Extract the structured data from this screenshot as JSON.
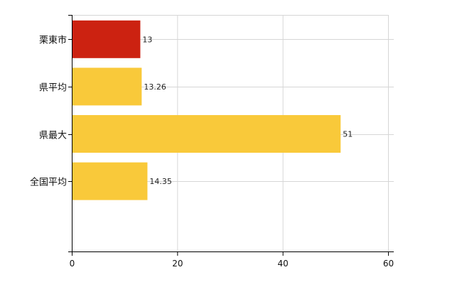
{
  "chart_data": {
    "type": "bar",
    "orientation": "horizontal",
    "title": "",
    "xlabel": "",
    "ylabel": "",
    "categories": [
      "栗東市",
      "県平均",
      "県最大",
      "全国平均"
    ],
    "values": [
      13,
      13.26,
      51,
      14.35
    ],
    "data_labels": [
      "13",
      "13.26",
      "51",
      "14.35"
    ],
    "bar_colors": [
      "#cc2211",
      "#f9c93a",
      "#f9c93a",
      "#f9c93a"
    ],
    "xlim": [
      0,
      60
    ],
    "x_ticks": [
      0,
      20,
      40,
      60
    ],
    "grid": true,
    "legend": "none"
  }
}
